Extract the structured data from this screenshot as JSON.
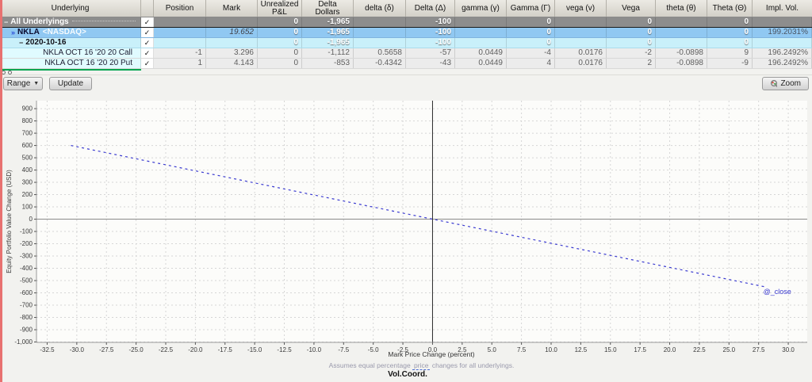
{
  "colors": {
    "accent_red_strip": "#e87170",
    "green_underline": "#00a550",
    "row_group_dark": "#8d8d8d",
    "row_group_blue": "#90c8f2",
    "row_group_lightblue": "#c9f0fa",
    "leaf_label_bg": "#e0fbff",
    "leaf_value_bg": "#ececec",
    "line_blue": "#3a3ad0"
  },
  "table": {
    "columns": [
      "Underlying",
      "",
      "Position",
      "Mark",
      "Unrealized\nP&L",
      "Delta\nDollars",
      "delta (δ)",
      "Delta (Δ)",
      "gamma (γ)",
      "Gamma (Γ)",
      "vega (v)",
      "Vega",
      "theta (θ)",
      "Theta (Θ)",
      "Impl. Vol."
    ],
    "column_keys": [
      "position",
      "mark",
      "unrealized-pl",
      "delta-dollars",
      "delta-small",
      "delta-cap",
      "gamma-small",
      "gamma-cap",
      "vega-small",
      "vega-cap",
      "theta-small",
      "theta-cap",
      "impl-vol"
    ],
    "rows": [
      {
        "id": "all-underlyings",
        "style": "group-dark",
        "prefix": "−",
        "label": "All Underlyings",
        "sublabel": "",
        "checked": true,
        "values": [
          "",
          "",
          "0",
          "-1,965",
          "",
          "-100",
          "",
          "0",
          "",
          "0",
          "",
          "0",
          ""
        ]
      },
      {
        "id": "nkla",
        "style": "group-blue",
        "prefix": "»",
        "label": "NKLA",
        "sublabel": "<NASDAQ>",
        "checked": true,
        "values": [
          "",
          "19.652",
          "0",
          "-1,965",
          "",
          "-100",
          "",
          "0",
          "",
          "0",
          "",
          "0",
          "199.2031%"
        ],
        "italic_idx": 1,
        "dim_idx": [
          1,
          12
        ]
      },
      {
        "id": "2020-10-16",
        "style": "group-lightblue",
        "prefix": "−",
        "label": "2020-10-16",
        "sublabel": "",
        "checked": true,
        "values": [
          "",
          "",
          "0",
          "-1,965",
          "",
          "-100",
          "",
          "0",
          "",
          "0",
          "",
          "0",
          ""
        ]
      },
      {
        "id": "nkla-call",
        "style": "leaf",
        "prefix": "",
        "label": "NKLA OCT 16 '20 20 Call",
        "sublabel": "",
        "checked": true,
        "values": [
          "-1",
          "3.296",
          "0",
          "-1,112",
          "0.5658",
          "-57",
          "0.0449",
          "-4",
          "0.0176",
          "-2",
          "-0.0898",
          "9",
          "196.2492%"
        ]
      },
      {
        "id": "nkla-put",
        "style": "leaf",
        "prefix": "",
        "label": "NKLA OCT 16 '20 20 Put",
        "sublabel": "",
        "checked": true,
        "values": [
          "1",
          "4.143",
          "0",
          "-853",
          "-0.4342",
          "-43",
          "0.0449",
          "4",
          "0.0176",
          "2",
          "-0.0898",
          "-9",
          "196.2492%"
        ]
      }
    ]
  },
  "toolbar": {
    "range_label": "Range",
    "update_label": "Update",
    "zoom_label": "Zoom"
  },
  "chart_data": {
    "type": "line",
    "title": "",
    "xlabel": "Mark Price Change (percent)",
    "ylabel": "Equity Portfolio Value Change (USD)",
    "xticks": [
      -32.5,
      -30,
      -27.5,
      -25,
      -22.5,
      -20,
      -17.5,
      -15,
      -12.5,
      -10,
      -7.5,
      -5,
      -2.5,
      0,
      2.5,
      5,
      7.5,
      10,
      12.5,
      15,
      17.5,
      20,
      22.5,
      25,
      27.5,
      30
    ],
    "yticks": [
      900,
      800,
      700,
      600,
      500,
      400,
      300,
      200,
      100,
      0,
      -100,
      -200,
      -300,
      -400,
      -500,
      -600,
      -700,
      -800,
      -900,
      -1000
    ],
    "xlim": [
      -33.4,
      31.6
    ],
    "ylim": [
      -1003,
      965
    ],
    "grid": true,
    "zero_line_x": 0,
    "zero_line_y": 0,
    "series": [
      {
        "name": "@_close",
        "color": "#3a3ad0",
        "dashed": true,
        "points": [
          [
            -30.5,
            600
          ],
          [
            28,
            -550
          ]
        ]
      }
    ],
    "annotation": {
      "text": "@_close",
      "x": 27.9,
      "y": -590,
      "color": "#3a3ad0"
    },
    "footnote_pre": "Assumes equal percentage ",
    "footnote_link": "price",
    "footnote_post": " changes for all underlyings.",
    "footer": "Vol.Coord."
  }
}
